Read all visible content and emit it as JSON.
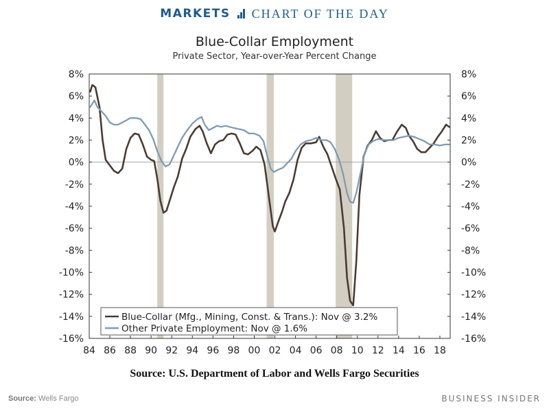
{
  "banner": {
    "brand": "MARKETS",
    "section": "CHART OF THE DAY"
  },
  "footer": {
    "source_label": "Source:",
    "source_value": "Wells Fargo",
    "brand": "BUSINESS INSIDER"
  },
  "source_note": "Source: U.S. Department of Labor and Wells Fargo Securities",
  "chart_data": {
    "type": "line",
    "title": "Blue-Collar Employment",
    "subtitle": "Private Sector, Year-over-Year Percent Change",
    "xlim": [
      1984,
      2019
    ],
    "ylim": [
      -16,
      8
    ],
    "x_ticks": [
      1984,
      1986,
      1988,
      1990,
      1992,
      1994,
      1996,
      1998,
      2000,
      2002,
      2004,
      2006,
      2008,
      2010,
      2012,
      2014,
      2016,
      2018
    ],
    "x_tick_labels": [
      "84",
      "86",
      "88",
      "90",
      "92",
      "94",
      "96",
      "98",
      "00",
      "02",
      "04",
      "06",
      "08",
      "10",
      "12",
      "14",
      "16",
      "18"
    ],
    "y_ticks": [
      8,
      6,
      4,
      2,
      0,
      -2,
      -4,
      -6,
      -8,
      -10,
      -12,
      -14,
      -16
    ],
    "y_tick_labels": [
      "8%",
      "6%",
      "4%",
      "2%",
      "0%",
      "-2%",
      "-4%",
      "-6%",
      "-8%",
      "-10%",
      "-12%",
      "-14%",
      "-16%"
    ],
    "grid": false,
    "legend_position": "bottom-left",
    "recession_periods": [
      [
        1990.6,
        1991.2
      ],
      [
        2001.2,
        2001.9
      ],
      [
        2007.9,
        2009.5
      ]
    ],
    "series": [
      {
        "name": "Blue-Collar (Mfg., Mining, Const. & Trans.): Nov @ 3.2%",
        "color": "#4a3b33",
        "points": [
          [
            1984.1,
            6.4
          ],
          [
            1984.3,
            7.0
          ],
          [
            1984.6,
            6.8
          ],
          [
            1985.0,
            5.0
          ],
          [
            1985.3,
            2.0
          ],
          [
            1985.6,
            0.2
          ],
          [
            1986.0,
            -0.3
          ],
          [
            1986.4,
            -0.8
          ],
          [
            1986.8,
            -1.0
          ],
          [
            1987.2,
            -0.6
          ],
          [
            1987.6,
            1.2
          ],
          [
            1988.0,
            2.2
          ],
          [
            1988.4,
            2.6
          ],
          [
            1988.8,
            2.5
          ],
          [
            1989.2,
            1.6
          ],
          [
            1989.6,
            0.5
          ],
          [
            1990.0,
            0.2
          ],
          [
            1990.3,
            0.1
          ],
          [
            1990.6,
            -1.5
          ],
          [
            1990.9,
            -3.5
          ],
          [
            1991.2,
            -4.6
          ],
          [
            1991.5,
            -4.4
          ],
          [
            1991.8,
            -3.5
          ],
          [
            1992.2,
            -2.3
          ],
          [
            1992.6,
            -1.3
          ],
          [
            1993.0,
            0.3
          ],
          [
            1993.4,
            1.2
          ],
          [
            1993.8,
            2.3
          ],
          [
            1994.3,
            3.0
          ],
          [
            1994.7,
            3.3
          ],
          [
            1995.0,
            2.8
          ],
          [
            1995.4,
            1.7
          ],
          [
            1995.8,
            0.8
          ],
          [
            1996.2,
            1.6
          ],
          [
            1996.6,
            1.9
          ],
          [
            1997.0,
            2.0
          ],
          [
            1997.4,
            2.5
          ],
          [
            1997.8,
            2.6
          ],
          [
            1998.2,
            2.5
          ],
          [
            1998.6,
            1.7
          ],
          [
            1999.0,
            0.8
          ],
          [
            1999.4,
            0.7
          ],
          [
            1999.8,
            1.0
          ],
          [
            2000.2,
            1.4
          ],
          [
            2000.6,
            1.1
          ],
          [
            2001.0,
            -0.2
          ],
          [
            2001.4,
            -3.0
          ],
          [
            2001.8,
            -5.8
          ],
          [
            2002.0,
            -6.3
          ],
          [
            2002.3,
            -5.5
          ],
          [
            2002.7,
            -4.5
          ],
          [
            2003.0,
            -3.6
          ],
          [
            2003.4,
            -2.8
          ],
          [
            2003.8,
            -1.6
          ],
          [
            2004.2,
            0.2
          ],
          [
            2004.6,
            1.3
          ],
          [
            2005.0,
            1.7
          ],
          [
            2005.5,
            1.7
          ],
          [
            2006.0,
            1.8
          ],
          [
            2006.3,
            2.3
          ],
          [
            2006.7,
            1.4
          ],
          [
            2007.1,
            0.7
          ],
          [
            2007.5,
            -0.4
          ],
          [
            2007.9,
            -1.5
          ],
          [
            2008.3,
            -2.5
          ],
          [
            2008.7,
            -6.0
          ],
          [
            2009.0,
            -10.5
          ],
          [
            2009.3,
            -12.6
          ],
          [
            2009.6,
            -13.0
          ],
          [
            2009.9,
            -9.0
          ],
          [
            2010.2,
            -3.0
          ],
          [
            2010.6,
            0.5
          ],
          [
            2011.0,
            1.5
          ],
          [
            2011.4,
            2.0
          ],
          [
            2011.8,
            2.8
          ],
          [
            2012.2,
            2.2
          ],
          [
            2012.6,
            1.9
          ],
          [
            2013.0,
            2.0
          ],
          [
            2013.4,
            2.0
          ],
          [
            2013.8,
            2.7
          ],
          [
            2014.3,
            3.4
          ],
          [
            2014.7,
            3.1
          ],
          [
            2015.0,
            2.4
          ],
          [
            2015.4,
            1.9
          ],
          [
            2015.8,
            1.2
          ],
          [
            2016.2,
            0.9
          ],
          [
            2016.6,
            0.9
          ],
          [
            2017.0,
            1.3
          ],
          [
            2017.4,
            1.7
          ],
          [
            2017.8,
            2.3
          ],
          [
            2018.2,
            2.8
          ],
          [
            2018.6,
            3.4
          ],
          [
            2018.9,
            3.2
          ]
        ]
      },
      {
        "name": "Other Private Employment: Nov @ 1.6%",
        "color": "#7f9bb3",
        "points": [
          [
            1984.1,
            5.0
          ],
          [
            1984.5,
            5.6
          ],
          [
            1984.8,
            5.0
          ],
          [
            1985.2,
            4.6
          ],
          [
            1985.6,
            4.2
          ],
          [
            1986.0,
            3.6
          ],
          [
            1986.4,
            3.4
          ],
          [
            1986.8,
            3.4
          ],
          [
            1987.2,
            3.6
          ],
          [
            1987.6,
            3.8
          ],
          [
            1988.0,
            4.0
          ],
          [
            1988.5,
            4.0
          ],
          [
            1989.0,
            3.9
          ],
          [
            1989.4,
            3.4
          ],
          [
            1989.8,
            2.9
          ],
          [
            1990.2,
            2.1
          ],
          [
            1990.6,
            1.0
          ],
          [
            1991.0,
            0.1
          ],
          [
            1991.4,
            -0.4
          ],
          [
            1991.8,
            -0.2
          ],
          [
            1992.2,
            0.6
          ],
          [
            1992.6,
            1.4
          ],
          [
            1993.0,
            2.2
          ],
          [
            1993.5,
            2.9
          ],
          [
            1994.0,
            3.5
          ],
          [
            1994.5,
            3.9
          ],
          [
            1994.9,
            4.1
          ],
          [
            1995.2,
            3.4
          ],
          [
            1995.6,
            2.9
          ],
          [
            1996.0,
            3.1
          ],
          [
            1996.4,
            3.3
          ],
          [
            1996.8,
            3.2
          ],
          [
            1997.2,
            3.3
          ],
          [
            1997.6,
            3.2
          ],
          [
            1998.0,
            3.1
          ],
          [
            1998.5,
            3.0
          ],
          [
            1999.0,
            2.9
          ],
          [
            1999.5,
            2.6
          ],
          [
            2000.0,
            2.6
          ],
          [
            2000.5,
            2.4
          ],
          [
            2000.9,
            1.9
          ],
          [
            2001.3,
            0.4
          ],
          [
            2001.6,
            -0.6
          ],
          [
            2001.9,
            -0.9
          ],
          [
            2002.3,
            -0.7
          ],
          [
            2002.8,
            -0.5
          ],
          [
            2003.2,
            -0.1
          ],
          [
            2003.6,
            0.3
          ],
          [
            2004.0,
            1.0
          ],
          [
            2004.5,
            1.6
          ],
          [
            2005.0,
            1.9
          ],
          [
            2005.5,
            2.0
          ],
          [
            2006.0,
            2.2
          ],
          [
            2006.5,
            2.0
          ],
          [
            2007.0,
            2.0
          ],
          [
            2007.4,
            1.8
          ],
          [
            2007.8,
            1.2
          ],
          [
            2008.2,
            0.3
          ],
          [
            2008.6,
            -1.0
          ],
          [
            2009.0,
            -2.8
          ],
          [
            2009.3,
            -3.6
          ],
          [
            2009.6,
            -3.7
          ],
          [
            2009.9,
            -2.8
          ],
          [
            2010.3,
            -1.0
          ],
          [
            2010.7,
            0.8
          ],
          [
            2011.1,
            1.6
          ],
          [
            2011.5,
            1.9
          ],
          [
            2012.0,
            2.1
          ],
          [
            2012.5,
            2.0
          ],
          [
            2013.0,
            2.0
          ],
          [
            2013.5,
            2.0
          ],
          [
            2014.0,
            2.2
          ],
          [
            2014.5,
            2.3
          ],
          [
            2015.0,
            2.4
          ],
          [
            2015.5,
            2.3
          ],
          [
            2016.0,
            2.1
          ],
          [
            2016.5,
            1.9
          ],
          [
            2017.0,
            1.6
          ],
          [
            2017.5,
            1.6
          ],
          [
            2018.0,
            1.5
          ],
          [
            2018.5,
            1.6
          ],
          [
            2018.9,
            1.6
          ]
        ]
      }
    ]
  }
}
